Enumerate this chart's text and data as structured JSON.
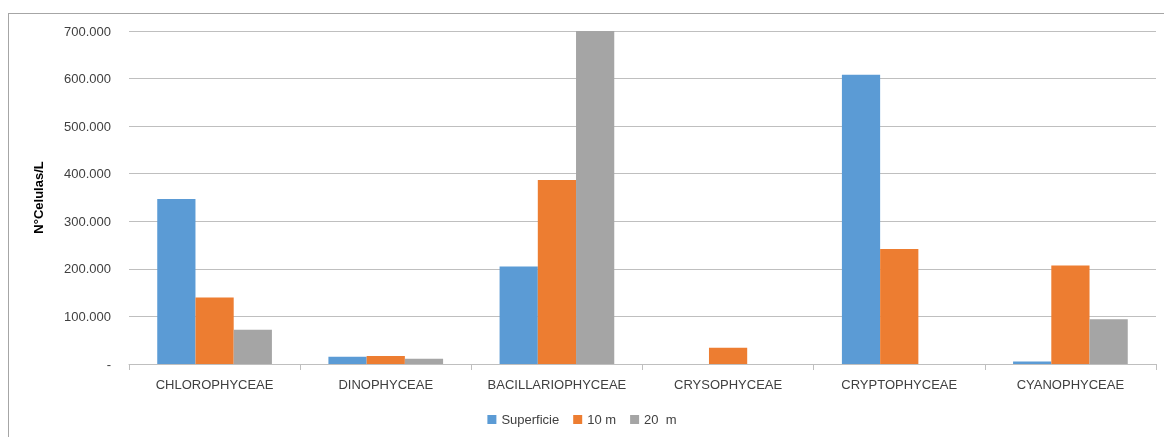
{
  "chart_data": {
    "type": "bar",
    "ylabel": "N°Celulas/L",
    "categories": [
      "CHLOROPHYCEAE",
      "DINOPHYCEAE",
      "BACILLARIOPHYCEAE",
      "CRYSOPHYCEAE",
      "CRYPTOPHYCEAE",
      "CYANOPHYCEAE"
    ],
    "series": [
      {
        "name": "Superficie",
        "color": "#5b9bd5",
        "values": [
          347000,
          15000,
          205000,
          0,
          608000,
          5000
        ]
      },
      {
        "name": "10 m",
        "color": "#ed7d31",
        "values": [
          140000,
          17000,
          387000,
          34000,
          242000,
          207000
        ]
      },
      {
        "name": "20  m",
        "color": "#a5a5a5",
        "values": [
          72000,
          11000,
          700000,
          0,
          0,
          94000
        ]
      }
    ],
    "ylim": [
      0,
      700000
    ],
    "yticks": [
      {
        "value": 0,
        "label": "-"
      },
      {
        "value": 100000,
        "label": "100.000"
      },
      {
        "value": 200000,
        "label": "200.000"
      },
      {
        "value": 300000,
        "label": "300.000"
      },
      {
        "value": 400000,
        "label": "400.000"
      },
      {
        "value": 500000,
        "label": "500.000"
      },
      {
        "value": 600000,
        "label": "600.000"
      },
      {
        "value": 700000,
        "label": "700.000"
      }
    ],
    "grid": "y",
    "legend": "bottom"
  }
}
